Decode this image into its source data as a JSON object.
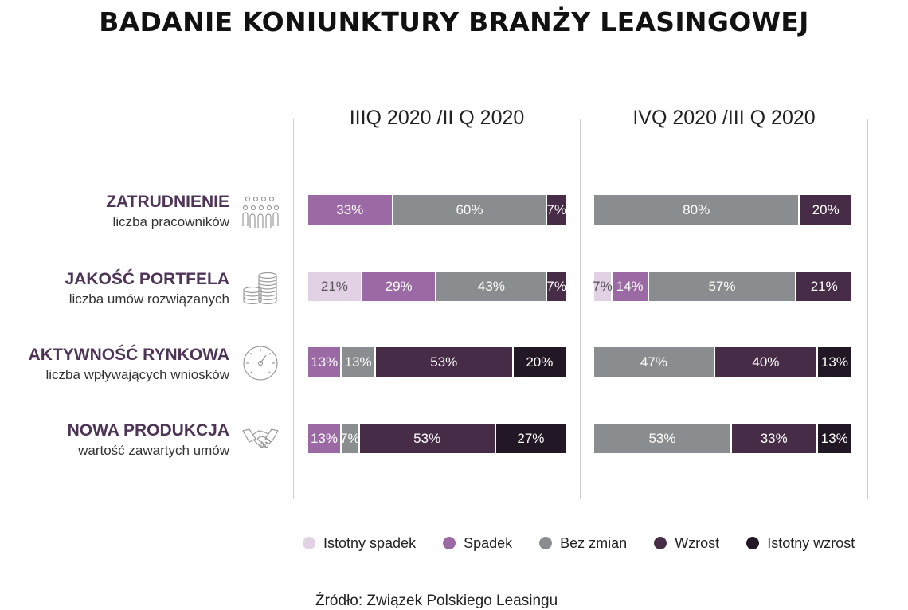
{
  "title": "BADANIE KONIUNKTURY BRANŻY LEASINGOWEJ",
  "source": "Źródło: Związek Polskiego Leasingu",
  "colors": {
    "istotny_spadek": "#e2d0e5",
    "spadek": "#9b6aa4",
    "bez_zmian": "#8a8d8f",
    "wzrost": "#462c46",
    "istotny_wzrost": "#221724"
  },
  "legend": [
    {
      "key": "istotny_spadek",
      "label": "Istotny spadek"
    },
    {
      "key": "spadek",
      "label": "Spadek"
    },
    {
      "key": "bez_zmian",
      "label": "Bez zmian"
    },
    {
      "key": "wzrost",
      "label": "Wzrost"
    },
    {
      "key": "istotny_wzrost",
      "label": "Istotny wzrost"
    }
  ],
  "categories": [
    {
      "title": "ZATRUDNIENIE",
      "subtitle": "liczba pracowników",
      "icon": "people-group-icon"
    },
    {
      "title": "JAKOŚĆ PORTFELA",
      "subtitle": "liczba umów rozwiązanych",
      "icon": "coin-stacks-icon"
    },
    {
      "title": "AKTYWNOŚĆ RYNKOWA",
      "subtitle": "liczba wpływających wniosków",
      "icon": "speedometer-icon"
    },
    {
      "title": "NOWA PRODUKCJA",
      "subtitle": "wartość zawartych umów",
      "icon": "handshake-icon"
    }
  ],
  "chart_data": {
    "type": "bar",
    "orientation": "horizontal",
    "stacked": true,
    "unit": "%",
    "categories": [
      "ZATRUDNIENIE",
      "JAKOŚĆ PORTFELA",
      "AKTYWNOŚĆ RYNKOWA",
      "NOWA PRODUKCJA"
    ],
    "series_names": [
      "Istotny spadek",
      "Spadek",
      "Bez zmian",
      "Wzrost",
      "Istotny wzrost"
    ],
    "panels": [
      {
        "title": "IIIQ 2020 /II Q 2020",
        "rows": [
          {
            "istotny_spadek": 0,
            "spadek": 33,
            "bez_zmian": 60,
            "wzrost": 7,
            "istotny_wzrost": 0
          },
          {
            "istotny_spadek": 21,
            "spadek": 29,
            "bez_zmian": 43,
            "wzrost": 7,
            "istotny_wzrost": 0
          },
          {
            "istotny_spadek": 0,
            "spadek": 13,
            "bez_zmian": 13,
            "wzrost": 53,
            "istotny_wzrost": 20
          },
          {
            "istotny_spadek": 0,
            "spadek": 13,
            "bez_zmian": 7,
            "wzrost": 53,
            "istotny_wzrost": 27
          }
        ]
      },
      {
        "title": "IVQ 2020 /III Q 2020",
        "rows": [
          {
            "istotny_spadek": 0,
            "spadek": 0,
            "bez_zmian": 80,
            "wzrost": 20,
            "istotny_wzrost": 0
          },
          {
            "istotny_spadek": 7,
            "spadek": 14,
            "bez_zmian": 57,
            "wzrost": 21,
            "istotny_wzrost": 0
          },
          {
            "istotny_spadek": 0,
            "spadek": 0,
            "bez_zmian": 47,
            "wzrost": 40,
            "istotny_wzrost": 13
          },
          {
            "istotny_spadek": 0,
            "spadek": 0,
            "bez_zmian": 53,
            "wzrost": 33,
            "istotny_wzrost": 13
          }
        ]
      }
    ]
  }
}
